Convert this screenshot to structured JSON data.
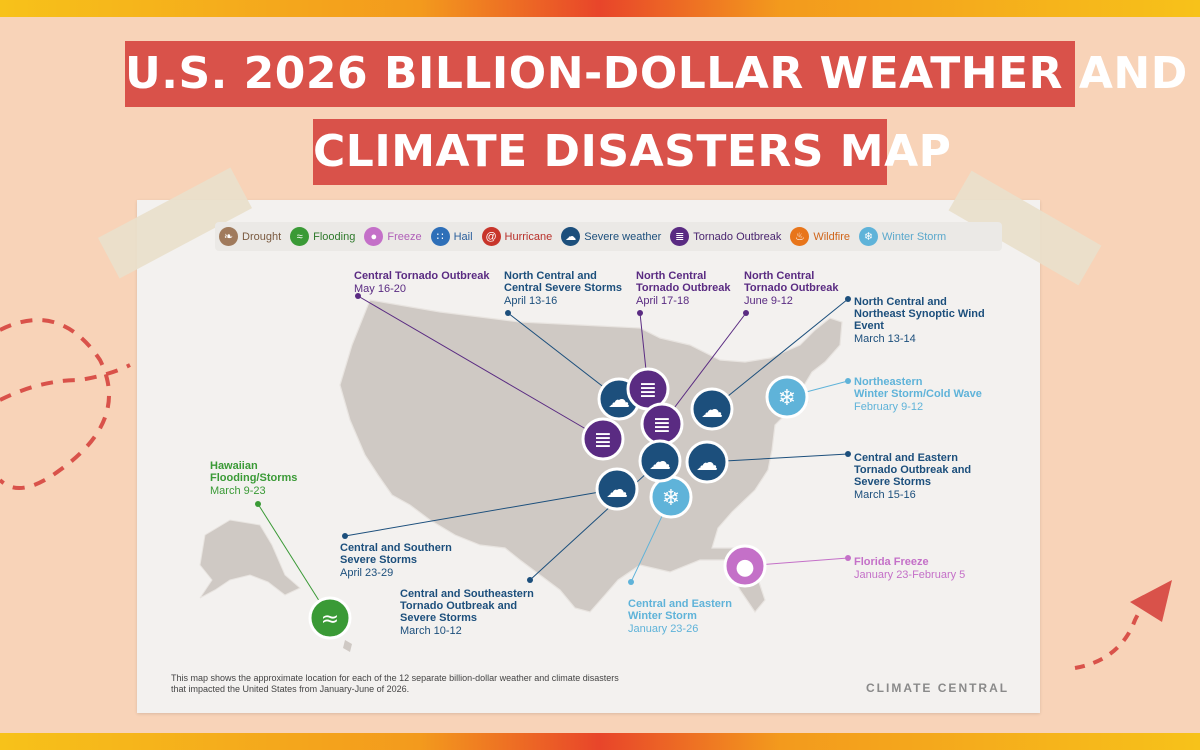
{
  "title": {
    "line1": "U.S. 2026 BILLION-DOLLAR WEATHER AND",
    "line2": "CLIMATE DISASTERS MAP"
  },
  "colors": {
    "background": "#f8d3b8",
    "title_bg": "#d9524a",
    "map_land": "#cfc9c4",
    "drought": "#a07a5c",
    "flooding": "#3a9a36",
    "freeze": "#c470c8",
    "hail": "#2e6fb8",
    "hurricane": "#c8352b",
    "severe_weather": "#1c4f7c",
    "tornado": "#5a2b82",
    "wildfire": "#e8751a",
    "winter_storm": "#5fb3d9"
  },
  "legend": [
    {
      "label": "Drought",
      "icon": "drought-icon",
      "color": "#a07a5c",
      "text_color": "#7a5a40"
    },
    {
      "label": "Flooding",
      "icon": "flooding-icon",
      "color": "#3a9a36",
      "text_color": "#2f7a2c"
    },
    {
      "label": "Freeze",
      "icon": "freeze-icon",
      "color": "#c470c8",
      "text_color": "#b060b8"
    },
    {
      "label": "Hail",
      "icon": "hail-icon",
      "color": "#2e6fb8",
      "text_color": "#2a5f9c"
    },
    {
      "label": "Hurricane",
      "icon": "hurricane-icon",
      "color": "#c8352b",
      "text_color": "#b8302a"
    },
    {
      "label": "Severe weather",
      "icon": "severe-weather-icon",
      "color": "#1c4f7c",
      "text_color": "#1c4f7c"
    },
    {
      "label": "Tornado Outbreak",
      "icon": "tornado-icon",
      "color": "#5a2b82",
      "text_color": "#4a2570"
    },
    {
      "label": "Wildfire",
      "icon": "wildfire-icon",
      "color": "#e8751a",
      "text_color": "#d0651a"
    },
    {
      "label": "Winter Storm",
      "icon": "winter-storm-icon",
      "color": "#5fb3d9",
      "text_color": "#5aa8cc"
    }
  ],
  "events": [
    {
      "name": "Central Tornado Outbreak",
      "dates": "May 16-20",
      "type": "tornado"
    },
    {
      "name": "North Central and\nCentral Severe Storms",
      "dates": "April 13-16",
      "type": "severe_weather"
    },
    {
      "name": "North Central\nTornado Outbreak",
      "dates": "April 17-18",
      "type": "tornado"
    },
    {
      "name": "North Central\nTornado Outbreak",
      "dates": "June 9-12",
      "type": "tornado"
    },
    {
      "name": "North Central and\nNortheast Synoptic Wind\nEvent",
      "dates": "March 13-14",
      "type": "severe_weather"
    },
    {
      "name": "Northeastern\nWinter Storm/Cold Wave",
      "dates": "February 9-12",
      "type": "winter_storm"
    },
    {
      "name": "Central and Eastern\nTornado Outbreak and\nSevere Storms",
      "dates": "March 15-16",
      "type": "severe_weather"
    },
    {
      "name": "Florida Freeze",
      "dates": "January 23-February 5",
      "type": "freeze"
    },
    {
      "name": "Central and Eastern\nWinter Storm",
      "dates": "January 23-26",
      "type": "winter_storm"
    },
    {
      "name": "Central and Southeastern\nTornado Outbreak and\nSevere Storms",
      "dates": "March 10-12",
      "type": "severe_weather"
    },
    {
      "name": "Central and Southern\nSevere Storms",
      "dates": "April 23-29",
      "type": "severe_weather"
    },
    {
      "name": "Hawaiian\nFlooding/Storms",
      "dates": "March 9-23",
      "type": "flooding"
    }
  ],
  "footnote": "This map shows the approximate location for each of the 12 separate billion-dollar weather and climate disasters\nthat impacted the United States from January-June of 2026.",
  "brand": "CLIMATE CENTRAL"
}
